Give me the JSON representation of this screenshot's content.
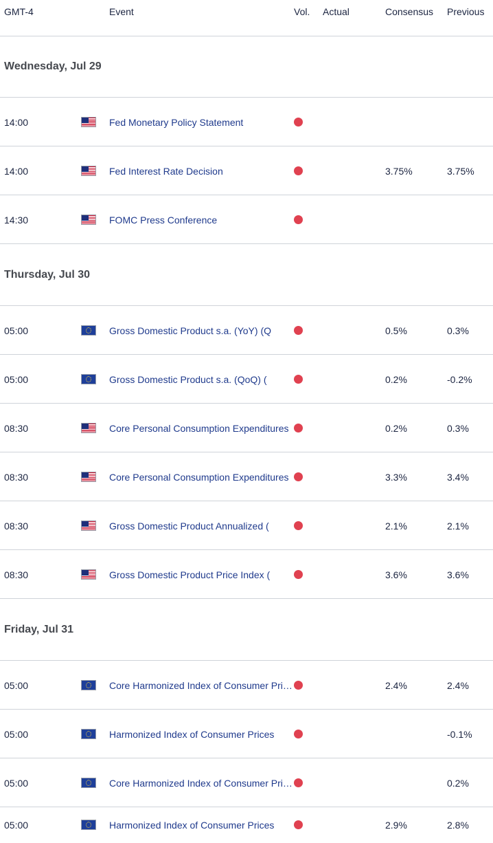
{
  "header": {
    "timezone": "GMT-4",
    "event": "Event",
    "volatility": "Vol.",
    "actual": "Actual",
    "consensus": "Consensus",
    "previous": "Previous"
  },
  "days": [
    {
      "label": "Wednesday, Jul 29",
      "events": [
        {
          "time": "14:00",
          "flag": "us-flag-icon",
          "event": "Fed Monetary Policy Statement",
          "actual": "",
          "consensus": "",
          "previous": ""
        },
        {
          "time": "14:00",
          "flag": "us-flag-icon",
          "event": "Fed Interest Rate Decision",
          "actual": "",
          "consensus": "3.75%",
          "previous": "3.75%"
        },
        {
          "time": "14:30",
          "flag": "us-flag-icon",
          "event": "FOMC Press Conference",
          "actual": "",
          "consensus": "",
          "previous": ""
        }
      ]
    },
    {
      "label": "Thursday, Jul 30",
      "events": [
        {
          "time": "05:00",
          "flag": "eu-flag-icon",
          "event": "Gross Domestic Product s.a. (YoY) (Q",
          "actual": "",
          "consensus": "0.5%",
          "previous": "0.3%"
        },
        {
          "time": "05:00",
          "flag": "eu-flag-icon",
          "event": "Gross Domestic Product s.a. (QoQ) (",
          "actual": "",
          "consensus": "0.2%",
          "previous": "-0.2%"
        },
        {
          "time": "08:30",
          "flag": "us-flag-icon",
          "event": "Core Personal Consumption Expenditures",
          "actual": "",
          "consensus": "0.2%",
          "previous": "0.3%"
        },
        {
          "time": "08:30",
          "flag": "us-flag-icon",
          "event": "Core Personal Consumption Expenditures",
          "actual": "",
          "consensus": "3.3%",
          "previous": "3.4%"
        },
        {
          "time": "08:30",
          "flag": "us-flag-icon",
          "event": "Gross Domestic Product Annualized (",
          "actual": "",
          "consensus": "2.1%",
          "previous": "2.1%"
        },
        {
          "time": "08:30",
          "flag": "us-flag-icon",
          "event": "Gross Domestic Product Price Index (",
          "actual": "",
          "consensus": "3.6%",
          "previous": "3.6%"
        }
      ]
    },
    {
      "label": "Friday, Jul 31",
      "events": [
        {
          "time": "05:00",
          "flag": "eu-flag-icon",
          "event": "Core Harmonized Index of Consumer Prices",
          "actual": "",
          "consensus": "2.4%",
          "previous": "2.4%"
        },
        {
          "time": "05:00",
          "flag": "eu-flag-icon",
          "event": "Harmonized Index of Consumer Prices",
          "actual": "",
          "consensus": "",
          "previous": "-0.1%"
        },
        {
          "time": "05:00",
          "flag": "eu-flag-icon",
          "event": "Core Harmonized Index of Consumer Prices",
          "actual": "",
          "consensus": "",
          "previous": "0.2%"
        },
        {
          "time": "05:00",
          "flag": "eu-flag-icon",
          "event": "Harmonized Index of Consumer Prices",
          "actual": "",
          "consensus": "2.9%",
          "previous": "2.8%"
        }
      ]
    }
  ],
  "volatility_color": "#e04150"
}
